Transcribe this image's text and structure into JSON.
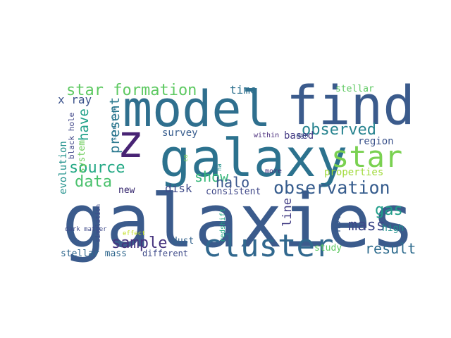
{
  "words": [
    {
      "text": "galaxies",
      "color": "#3b5b8c"
    },
    {
      "text": "model",
      "color": "#2f6f8e"
    },
    {
      "text": "find",
      "color": "#3b5b8c"
    },
    {
      "text": "galaxy",
      "color": "#2c728e"
    },
    {
      "text": "z",
      "color": "#482374"
    },
    {
      "text": "star",
      "color": "#7ad151"
    },
    {
      "text": "cluster",
      "color": "#31688e"
    },
    {
      "text": "observation",
      "color": "#365c8d"
    },
    {
      "text": "star formation",
      "color": "#5ec962"
    },
    {
      "text": "observed",
      "color": "#26838f"
    },
    {
      "text": "source",
      "color": "#22a884"
    },
    {
      "text": "sample",
      "color": "#46337e"
    },
    {
      "text": "result",
      "color": "#2f6c8e"
    },
    {
      "text": "gas",
      "color": "#1f9e89"
    },
    {
      "text": "mass",
      "color": "#3e4989"
    },
    {
      "text": "data",
      "color": "#4ac16d"
    },
    {
      "text": "show",
      "color": "#35b779"
    },
    {
      "text": "halo",
      "color": "#39568c"
    },
    {
      "text": "disk",
      "color": "#3e4a89"
    },
    {
      "text": "time",
      "color": "#2d708e"
    },
    {
      "text": "x ray",
      "color": "#3b528b"
    },
    {
      "text": "have",
      "color": "#1fa088"
    },
    {
      "text": "present",
      "color": "#2a788e"
    },
    {
      "text": "survey",
      "color": "#365c8d"
    },
    {
      "text": "based",
      "color": "#443a83"
    },
    {
      "text": "region",
      "color": "#3b528b"
    },
    {
      "text": "properties",
      "color": "#a0da39"
    },
    {
      "text": "consistent",
      "color": "#3f4788"
    },
    {
      "text": "new",
      "color": "#2d1e68"
    },
    {
      "text": "line",
      "color": "#433e85"
    },
    {
      "text": "not",
      "color": "#38598c"
    },
    {
      "text": "high",
      "color": "#21918c"
    },
    {
      "text": "dust",
      "color": "#33638d"
    },
    {
      "text": "study",
      "color": "#5ec962"
    },
    {
      "text": "different",
      "color": "#3e4a89"
    },
    {
      "text": "stellar mass",
      "color": "#31688e"
    },
    {
      "text": "stellar",
      "color": "#5ec962"
    },
    {
      "text": "evolution",
      "color": "#21918c"
    },
    {
      "text": "black hole",
      "color": "#404688"
    },
    {
      "text": "system",
      "color": "#6ccd5a"
    },
    {
      "text": "structure",
      "color": "#2c728e"
    },
    {
      "text": "within",
      "color": "#472a7a"
    },
    {
      "text": "agn",
      "color": "#3b528b"
    },
    {
      "text": "more",
      "color": "#46327e"
    },
    {
      "text": "ha",
      "color": "#21918c"
    },
    {
      "text": "co",
      "color": "#7ad151"
    },
    {
      "text": "redshift",
      "color": "#22a884"
    },
    {
      "text": "dark matter",
      "color": "#3e4989"
    },
    {
      "text": "simulation",
      "color": "#3e4989"
    },
    {
      "text": "effect",
      "color": "#c2df23"
    }
  ]
}
